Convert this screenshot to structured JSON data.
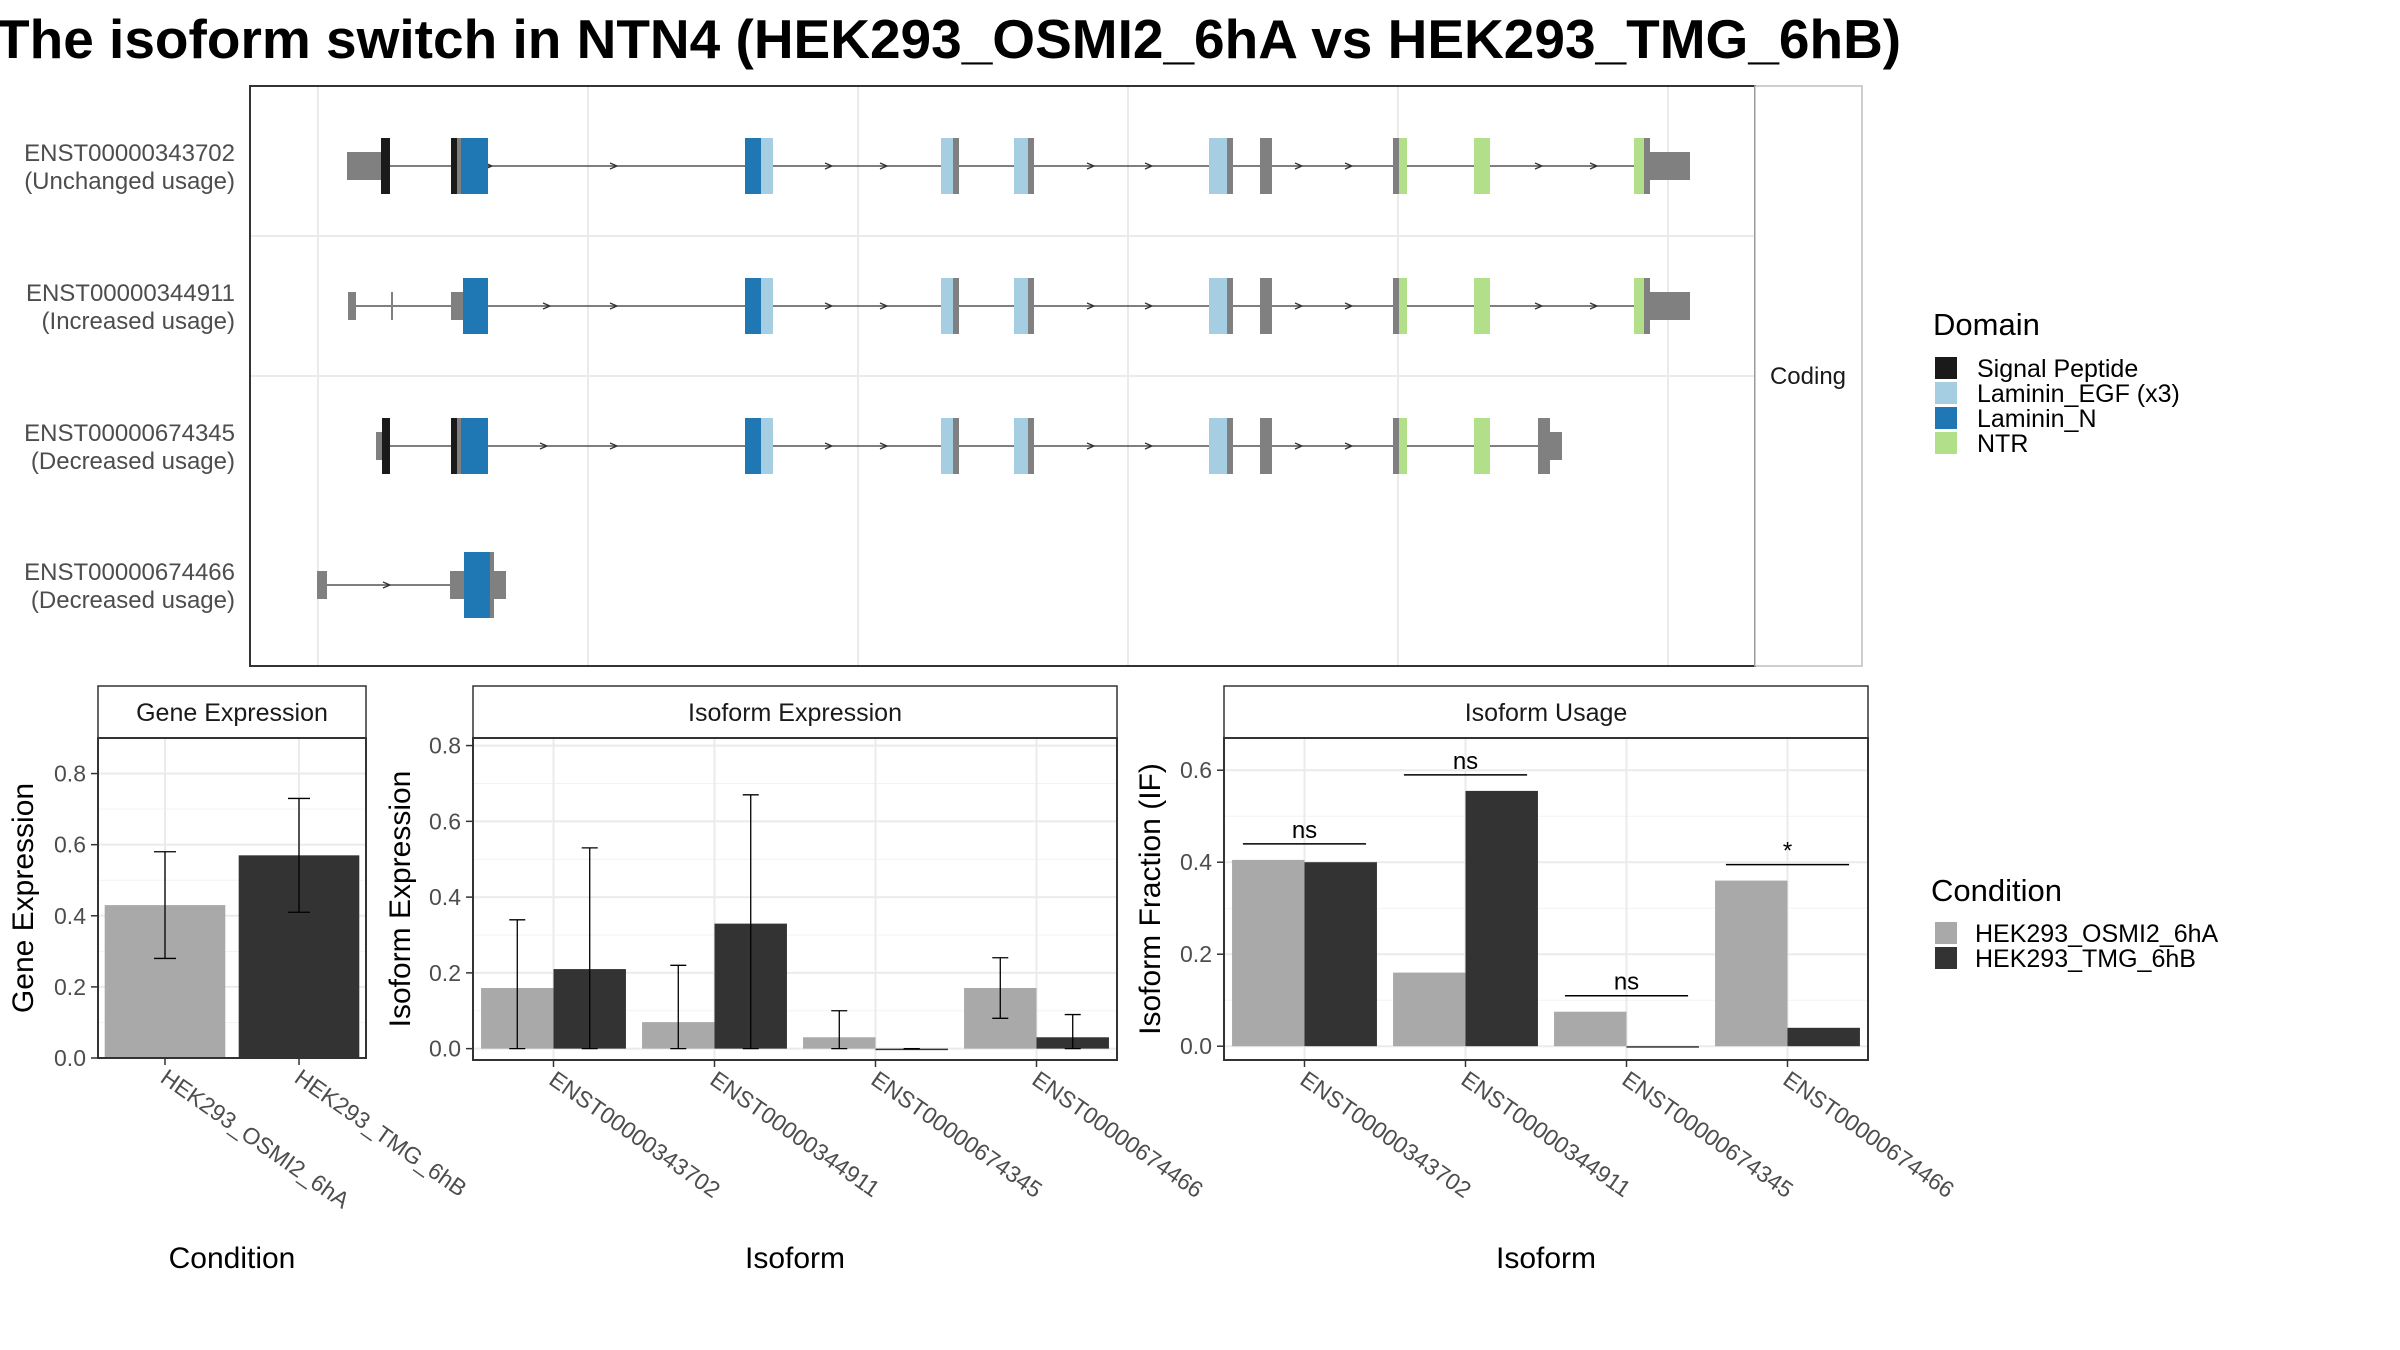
{
  "title": "The isoform switch in NTN4 (HEK293_OSMI2_6hA vs HEK293_TMG_6hB)",
  "colors": {
    "signal_peptide": "#1a1a1a",
    "laminin_egf": "#a6cee3",
    "laminin_n": "#1f78b4",
    "ntr": "#b2df8a",
    "non_domain": "#808080",
    "cond_a": "#a9a9a9",
    "cond_b": "#333333",
    "grid": "#ebebeb",
    "strip_bg": "#ffffff"
  },
  "structure": {
    "facet_label": "Coding",
    "transcripts": [
      {
        "id": "ENST00000343702",
        "usage": "(Unchanged usage)"
      },
      {
        "id": "ENST00000344911",
        "usage": "(Increased usage)"
      },
      {
        "id": "ENST00000674345",
        "usage": "(Decreased usage)"
      },
      {
        "id": "ENST00000674466",
        "usage": "(Decreased usage)"
      }
    ],
    "legend": {
      "title": "Domain",
      "items": [
        {
          "label": "Signal Peptide",
          "color": "#1a1a1a"
        },
        {
          "label": "Laminin_EGF (x3)",
          "color": "#a6cee3"
        },
        {
          "label": "Laminin_N",
          "color": "#1f78b4"
        },
        {
          "label": "NTR",
          "color": "#b2df8a"
        }
      ]
    }
  },
  "condition_legend": {
    "title": "Condition",
    "items": [
      {
        "label": "HEK293_OSMI2_6hA",
        "color": "#a9a9a9"
      },
      {
        "label": "HEK293_TMG_6hB",
        "color": "#333333"
      }
    ]
  },
  "chart_data": [
    {
      "type": "bar",
      "title": "Gene Expression",
      "xlabel": "Condition",
      "ylabel": "Gene Expression",
      "ylim": [
        0,
        0.9
      ],
      "yticks": [
        "0.0",
        "0.2",
        "0.4",
        "0.6",
        "0.8"
      ],
      "categories": [
        "HEK293_OSMI2_6hA",
        "HEK293_TMG_6hB"
      ],
      "values": [
        0.43,
        0.57
      ],
      "err_low": [
        0.28,
        0.41
      ],
      "err_high": [
        0.58,
        0.73
      ]
    },
    {
      "type": "bar",
      "title": "Isoform Expression",
      "xlabel": "Isoform",
      "ylabel": "Isoform Expression",
      "ylim": [
        -0.03,
        0.82
      ],
      "yticks": [
        "0.0",
        "0.2",
        "0.4",
        "0.6",
        "0.8"
      ],
      "categories": [
        "ENST00000343702",
        "ENST00000344911",
        "ENST00000674345",
        "ENST00000674466"
      ],
      "series": [
        {
          "name": "HEK293_OSMI2_6hA",
          "values": [
            0.16,
            0.07,
            0.03,
            0.16
          ],
          "err_low": [
            0.0,
            0.0,
            0.0,
            0.08
          ],
          "err_high": [
            0.34,
            0.22,
            0.1,
            0.24
          ]
        },
        {
          "name": "HEK293_TMG_6hB",
          "values": [
            0.21,
            0.33,
            0.0,
            0.03
          ],
          "err_low": [
            0.0,
            0.0,
            0.0,
            0.0
          ],
          "err_high": [
            0.53,
            0.67,
            0.0,
            0.09
          ]
        }
      ]
    },
    {
      "type": "bar",
      "title": "Isoform Usage",
      "xlabel": "Isoform",
      "ylabel": "Isoform Fraction (IF)",
      "ylim": [
        -0.03,
        0.67
      ],
      "yticks": [
        "0.0",
        "0.2",
        "0.4",
        "0.6"
      ],
      "categories": [
        "ENST00000343702",
        "ENST00000344911",
        "ENST00000674345",
        "ENST00000674466"
      ],
      "series": [
        {
          "name": "HEK293_OSMI2_6hA",
          "values": [
            0.405,
            0.16,
            0.075,
            0.36
          ]
        },
        {
          "name": "HEK293_TMG_6hB",
          "values": [
            0.4,
            0.555,
            0.0,
            0.04
          ]
        }
      ],
      "significance": [
        "ns",
        "ns",
        "ns",
        "*"
      ]
    }
  ]
}
